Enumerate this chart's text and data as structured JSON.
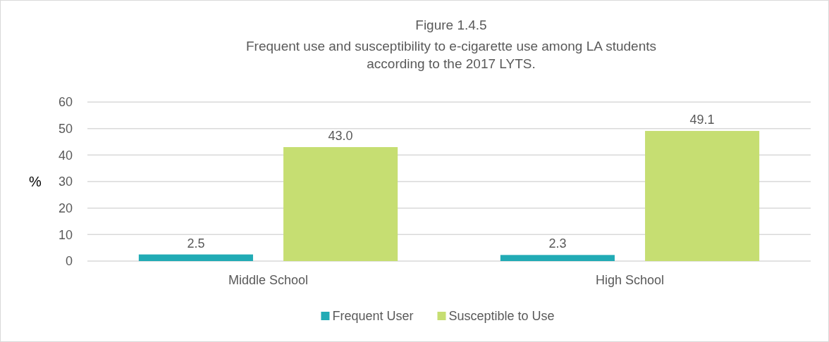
{
  "chart_data": {
    "type": "bar",
    "title": "Figure 1.4.5",
    "subtitle": "Frequent use and susceptibility to e-cigarette use among LA students according to the 2017 LYTS.",
    "ylabel": "%",
    "categories": [
      "Middle School",
      "High School"
    ],
    "series": [
      {
        "name": "Frequent User",
        "color": "#21abb5",
        "values": [
          2.5,
          2.3
        ],
        "value_labels": [
          "2.5",
          "2.3"
        ]
      },
      {
        "name": "Susceptible to Use",
        "color": "#c6de72",
        "values": [
          43.0,
          49.1
        ],
        "value_labels": [
          "43.0",
          "49.1"
        ]
      }
    ],
    "ylim": [
      0,
      60
    ],
    "yticks": [
      0,
      10,
      20,
      30,
      40,
      50,
      60
    ],
    "grid": "y",
    "legend": "bottom"
  }
}
